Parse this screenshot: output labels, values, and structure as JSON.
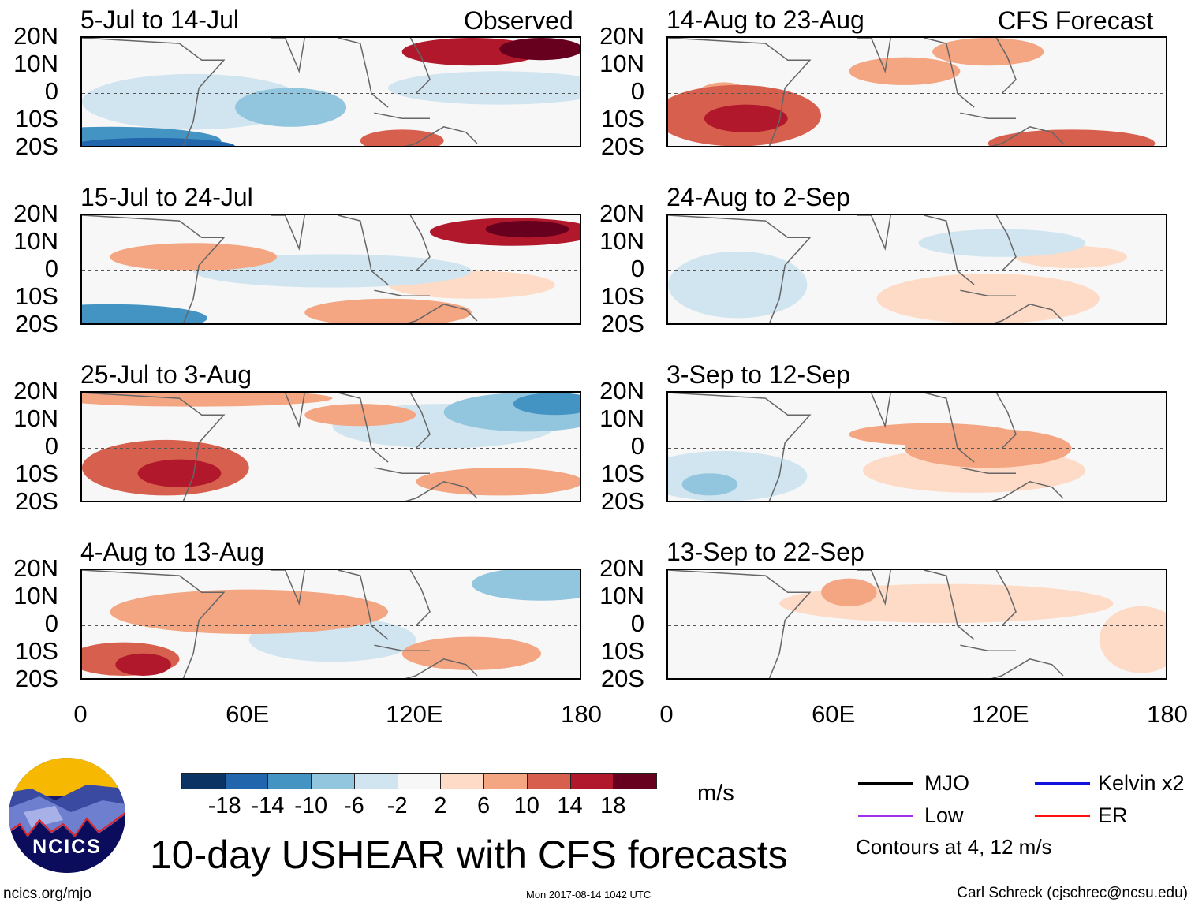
{
  "header": {
    "left_label": "Observed",
    "right_label": "CFS Forecast"
  },
  "chart_data": {
    "type": "heatmap",
    "title": "10-day USHEAR with CFS forecasts",
    "units": "m/s",
    "xlim": [
      0,
      180
    ],
    "ylim": [
      -20,
      20
    ],
    "x_ticks": [
      "0",
      "60E",
      "120E",
      "180"
    ],
    "x_tick_values": [
      0,
      60,
      120,
      180
    ],
    "y_ticks": [
      "20N",
      "10N",
      "0",
      "10S",
      "20S"
    ],
    "y_tick_values": [
      20,
      10,
      0,
      -10,
      -20
    ],
    "colorbar": {
      "levels": [
        "-18",
        "-14",
        "-10",
        "-6",
        "-2",
        "2",
        "6",
        "10",
        "14",
        "18"
      ],
      "colors": [
        "#0b3464",
        "#2166ac",
        "#4393c3",
        "#92c5de",
        "#d1e5f0",
        "#f7f7f7",
        "#fddbc7",
        "#f4a582",
        "#d6604d",
        "#b2182b",
        "#67001f"
      ]
    },
    "legend": [
      {
        "name": "MJO",
        "color": "#000000"
      },
      {
        "name": "Kelvin x2",
        "color": "#1010e0"
      },
      {
        "name": "Low",
        "color": "#a030f0"
      },
      {
        "name": "ER",
        "color": "#ff1010"
      }
    ],
    "contour_note": "Contours at 4, 12 m/s",
    "panels": [
      {
        "title": "5-Jul to 14-Jul",
        "features": [
          [
            10,
            -17,
            40,
            5,
            -14
          ],
          [
            25,
            -19,
            30,
            3,
            -18
          ],
          [
            75,
            -5,
            20,
            7,
            -10
          ],
          [
            40,
            -3,
            40,
            10,
            -6
          ],
          [
            140,
            15,
            25,
            5,
            14
          ],
          [
            165,
            16,
            15,
            4,
            18
          ],
          [
            115,
            -17,
            15,
            4,
            10
          ],
          [
            150,
            2,
            40,
            6,
            -6
          ]
        ]
      },
      {
        "title": "15-Jul to 24-Jul",
        "features": [
          [
            10,
            -17,
            35,
            5,
            -14
          ],
          [
            90,
            0,
            50,
            6,
            -6
          ],
          [
            155,
            14,
            30,
            5,
            14
          ],
          [
            160,
            15,
            15,
            3,
            18
          ],
          [
            110,
            -15,
            30,
            5,
            6
          ],
          [
            40,
            5,
            30,
            5,
            6
          ],
          [
            140,
            -5,
            30,
            5,
            2
          ]
        ]
      },
      {
        "title": "25-Jul to 3-Aug",
        "features": [
          [
            30,
            -7,
            30,
            10,
            10
          ],
          [
            35,
            -9,
            15,
            5,
            14
          ],
          [
            160,
            13,
            30,
            7,
            -10
          ],
          [
            170,
            16,
            15,
            4,
            -14
          ],
          [
            130,
            8,
            40,
            8,
            -6
          ],
          [
            40,
            18,
            50,
            3,
            6
          ],
          [
            150,
            -12,
            30,
            5,
            6
          ],
          [
            100,
            12,
            20,
            4,
            6
          ]
        ]
      },
      {
        "title": "4-Aug to 13-Aug",
        "features": [
          [
            15,
            -12,
            20,
            6,
            10
          ],
          [
            22,
            -14,
            10,
            4,
            14
          ],
          [
            165,
            15,
            25,
            6,
            -10
          ],
          [
            90,
            -5,
            30,
            8,
            -6
          ],
          [
            60,
            5,
            50,
            8,
            6
          ],
          [
            140,
            -10,
            25,
            6,
            6
          ],
          [
            130,
            8,
            30,
            5,
            -2
          ]
        ]
      },
      {
        "title": "14-Aug to 23-Aug",
        "features": [
          [
            25,
            -8,
            30,
            11,
            10
          ],
          [
            28,
            -9,
            15,
            5,
            14
          ],
          [
            20,
            -1,
            10,
            5,
            6
          ],
          [
            85,
            8,
            20,
            5,
            6
          ],
          [
            115,
            15,
            20,
            5,
            6
          ],
          [
            145,
            -18,
            30,
            5,
            10
          ],
          [
            100,
            -4,
            40,
            4,
            -2
          ],
          [
            165,
            0,
            20,
            10,
            -2
          ]
        ]
      },
      {
        "title": "24-Aug to 2-Sep",
        "features": [
          [
            25,
            -5,
            25,
            12,
            -6
          ],
          [
            120,
            10,
            30,
            5,
            -6
          ],
          [
            115,
            -10,
            40,
            9,
            2
          ],
          [
            145,
            5,
            20,
            4,
            2
          ],
          [
            50,
            10,
            30,
            5,
            -2
          ]
        ]
      },
      {
        "title": "3-Sep to 12-Sep",
        "features": [
          [
            20,
            -10,
            30,
            9,
            -6
          ],
          [
            15,
            -13,
            10,
            4,
            -10
          ],
          [
            95,
            5,
            30,
            4,
            6
          ],
          [
            115,
            0,
            30,
            7,
            6
          ],
          [
            170,
            -5,
            15,
            10,
            -2
          ],
          [
            110,
            -8,
            40,
            8,
            2
          ]
        ]
      },
      {
        "title": "13-Sep to 22-Sep",
        "features": [
          [
            65,
            12,
            10,
            5,
            6
          ],
          [
            100,
            8,
            60,
            7,
            2
          ],
          [
            170,
            -5,
            15,
            12,
            2
          ],
          [
            20,
            -10,
            25,
            9,
            -2
          ],
          [
            135,
            -5,
            10,
            4,
            -2
          ]
        ]
      }
    ]
  },
  "footer": {
    "logo_text": "NCICS",
    "site": "ncics.org/mjo",
    "timestamp": "Mon 2017-08-14 1042 UTC",
    "author": "Carl Schreck (cjschrec@ncsu.edu)"
  }
}
